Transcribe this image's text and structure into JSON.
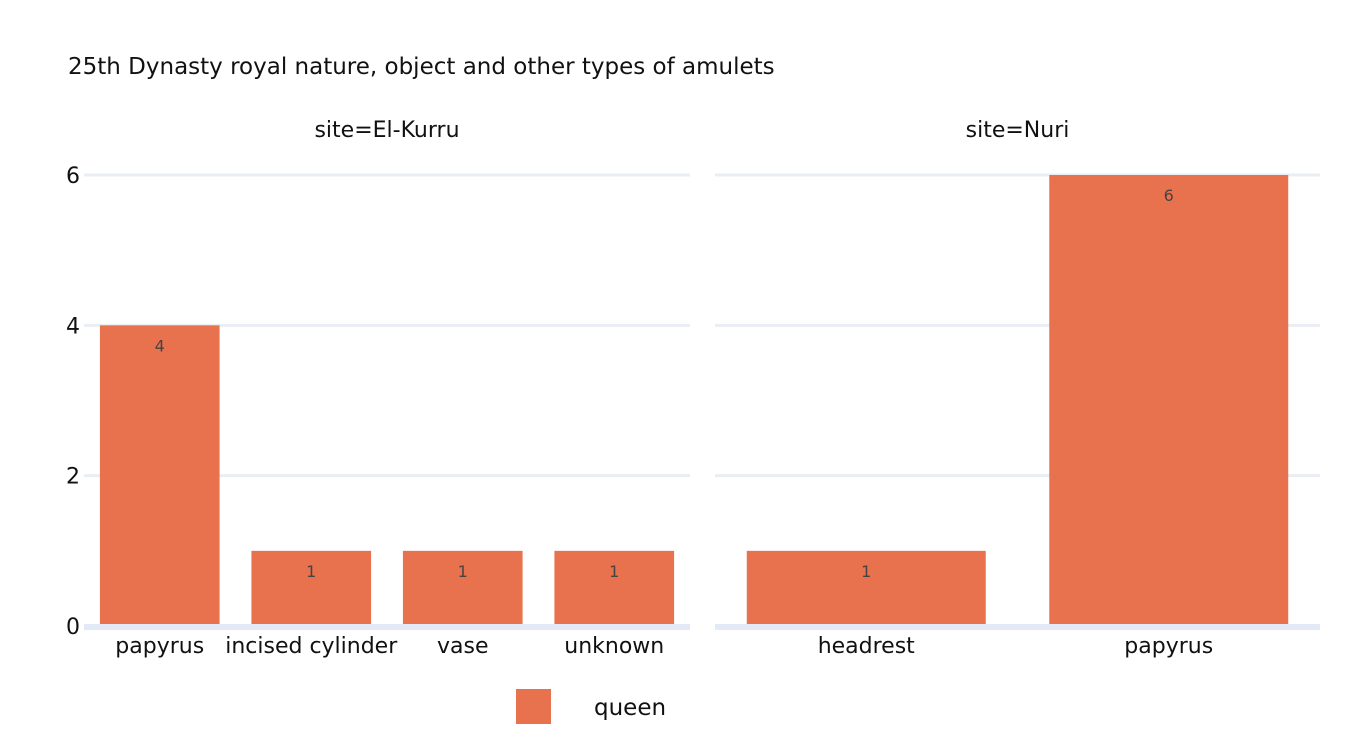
{
  "chart_data": {
    "type": "bar",
    "title": "25th Dynasty royal nature, object and other types of amulets",
    "ylabel": "",
    "xlabel": "",
    "ylim": [
      0,
      6
    ],
    "yticks": [
      0,
      2,
      4,
      6
    ],
    "grid": true,
    "legend": {
      "placement": "bottom-center",
      "entries": [
        {
          "name": "queen",
          "color": "#e8724e"
        }
      ]
    },
    "facets": [
      {
        "title": "site=El-Kurru",
        "categories": [
          "papyrus",
          "incised cylinder",
          "vase",
          "unknown"
        ],
        "series": [
          {
            "name": "queen",
            "values": [
              4,
              1,
              1,
              1
            ]
          }
        ]
      },
      {
        "title": "site=Nuri",
        "categories": [
          "headrest",
          "papyrus"
        ],
        "series": [
          {
            "name": "queen",
            "values": [
              1,
              6
            ]
          }
        ]
      }
    ]
  }
}
